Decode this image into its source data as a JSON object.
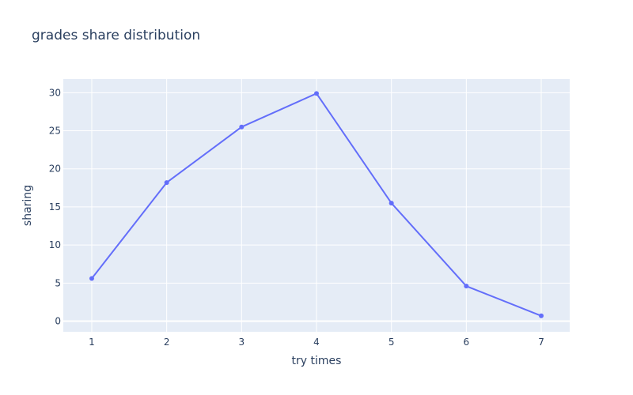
{
  "chart_data": {
    "type": "line",
    "title": "grades share distribution",
    "xlabel": "try times",
    "ylabel": "sharing",
    "x": [
      1,
      2,
      3,
      4,
      5,
      6,
      7
    ],
    "series": [
      {
        "values": [
          5.6,
          18.2,
          25.5,
          29.9,
          15.5,
          4.6,
          0.7
        ]
      }
    ],
    "xlim": [
      0.62,
      7.38
    ],
    "ylim": [
      -1.4,
      31.8
    ],
    "xticks": [
      1,
      2,
      3,
      4,
      5,
      6,
      7
    ],
    "yticks": [
      0,
      5,
      10,
      15,
      20,
      25,
      30
    ],
    "grid": true,
    "legend": "none",
    "colors": {
      "line": "#636efa",
      "plot_background": "#e5ecf6",
      "grid": "#ffffff",
      "text": "#2a3f5f"
    }
  }
}
